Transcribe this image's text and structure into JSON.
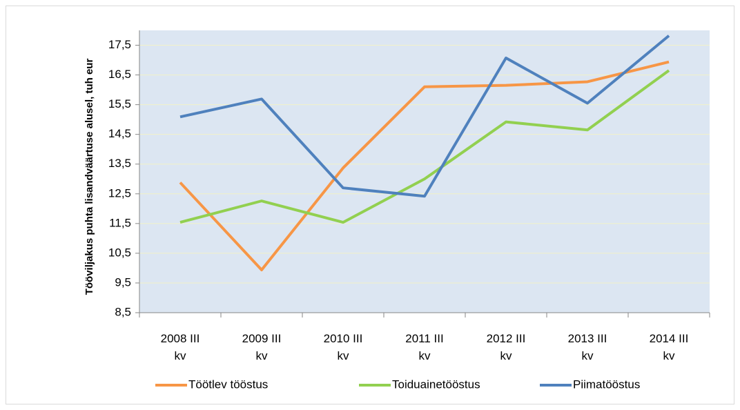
{
  "chart_data": {
    "type": "line",
    "ylabel": "Tööviljakus puhta lisandväärtuse alusel, tuh eur",
    "categories": [
      "2008 III kv",
      "2009 III kv",
      "2010 III kv",
      "2011 III kv",
      "2012 III kv",
      "2013 III kv",
      "2014 III kv"
    ],
    "series": [
      {
        "name": "Töötlev tööstus",
        "color": "#f79646",
        "values": [
          12.88,
          9.94,
          13.37,
          16.1,
          16.15,
          16.27,
          16.94
        ]
      },
      {
        "name": "Toiduainetööstus",
        "color": "#92d050",
        "values": [
          11.54,
          12.26,
          11.54,
          13.0,
          14.92,
          14.65,
          16.65
        ]
      },
      {
        "name": "Piimatööstus",
        "color": "#4f81bd",
        "values": [
          15.09,
          15.69,
          12.7,
          12.42,
          17.07,
          15.55,
          17.82
        ]
      }
    ],
    "ylim": [
      8.5,
      18
    ],
    "yticks": [
      {
        "value": 8.5,
        "label": "8,5"
      },
      {
        "value": 9.5,
        "label": "9,5"
      },
      {
        "value": 10.5,
        "label": "10,5"
      },
      {
        "value": 11.5,
        "label": "11,5"
      },
      {
        "value": 12.5,
        "label": "12,5"
      },
      {
        "value": 13.5,
        "label": "13,5"
      },
      {
        "value": 14.5,
        "label": "14,5"
      },
      {
        "value": 15.5,
        "label": "15,5"
      },
      {
        "value": 16.5,
        "label": "16,5"
      },
      {
        "value": 17.5,
        "label": "17,5"
      }
    ],
    "grid": true,
    "plot_background": "#dce6f2",
    "legend": "bottom"
  }
}
